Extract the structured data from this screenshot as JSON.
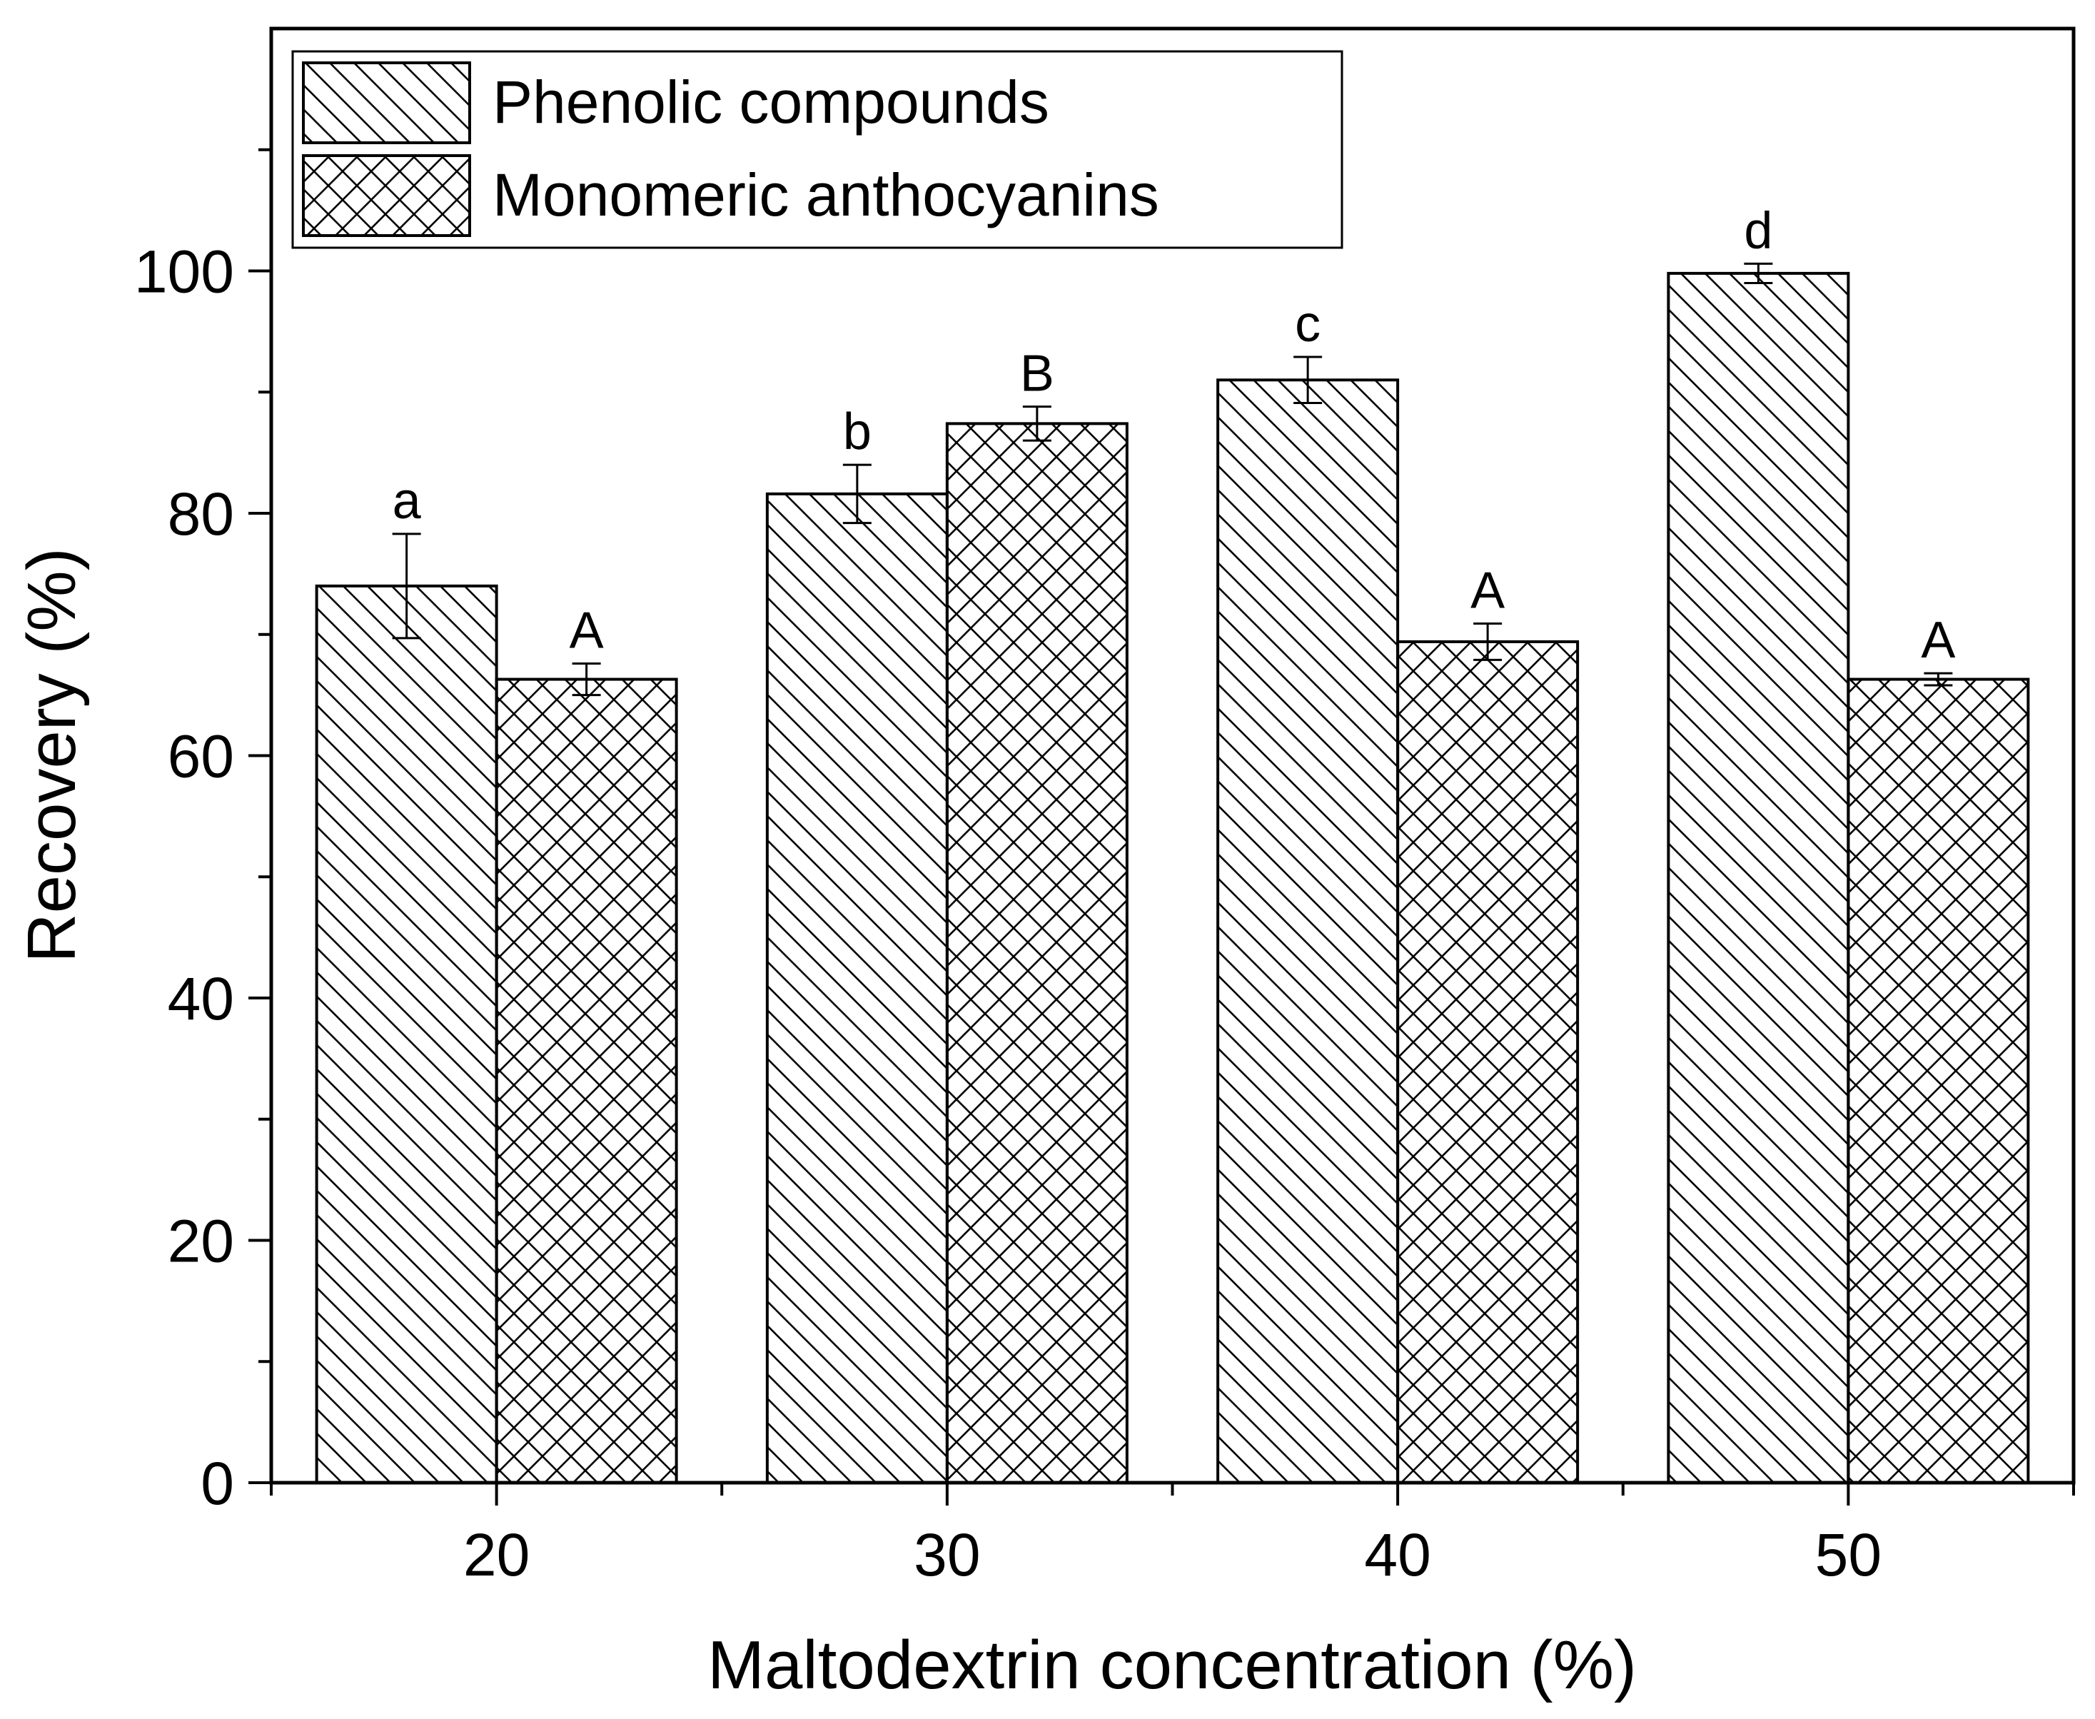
{
  "chart_data": {
    "type": "bar",
    "title": "",
    "xlabel": "Maltodextrin concentration (%)",
    "ylabel": "Recovery (%)",
    "ylim": [
      0,
      120
    ],
    "yticks": [
      0,
      20,
      40,
      60,
      80,
      100
    ],
    "categories": [
      "20",
      "30",
      "40",
      "50"
    ],
    "grid": false,
    "legend_position": "top-left",
    "series": [
      {
        "name": "Phenolic compounds",
        "pattern": "diagonal",
        "values": [
          74.0,
          81.6,
          91.0,
          99.8
        ],
        "errors": [
          4.3,
          2.4,
          1.9,
          0.8
        ],
        "labels": [
          "a",
          "b",
          "c",
          "d"
        ]
      },
      {
        "name": "Monomeric anthocyanins",
        "pattern": "crosshatch",
        "values": [
          66.3,
          87.4,
          69.4,
          66.3
        ],
        "errors": [
          1.3,
          1.4,
          1.5,
          0.5
        ],
        "labels": [
          "A",
          "B",
          "A",
          "A"
        ]
      }
    ]
  }
}
